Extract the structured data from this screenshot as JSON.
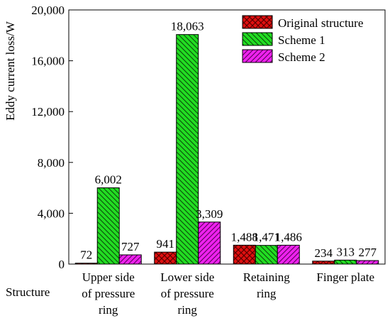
{
  "chart_data": {
    "type": "bar",
    "ylabel": "Eddy current loss/W",
    "xlabel": "Structure",
    "ylim": [
      0,
      20000
    ],
    "yticks": [
      "0",
      "4,000",
      "8,000",
      "12,000",
      "16,000",
      "20,000"
    ],
    "categories": [
      [
        "Upper side",
        "of pressure",
        "ring"
      ],
      [
        "Lower side",
        "of pressure",
        "ring"
      ],
      [
        "Retaining",
        "ring"
      ],
      [
        "Finger plate"
      ]
    ],
    "series": [
      {
        "name": "Original structure",
        "color": "#e01010",
        "pattern": "crosshatch",
        "values": [
          72,
          941,
          1488,
          234
        ],
        "labels": [
          "72",
          "941",
          "1,488",
          "234"
        ]
      },
      {
        "name": "Scheme 1",
        "color": "#22dd22",
        "pattern": "backslash",
        "values": [
          6002,
          18063,
          1471,
          313
        ],
        "labels": [
          "6,002",
          "18,063",
          "1,471",
          "313"
        ]
      },
      {
        "name": "Scheme 2",
        "color": "#ee22ee",
        "pattern": "slash",
        "values": [
          727,
          3309,
          1486,
          277
        ],
        "labels": [
          "727",
          "3,309",
          "1,486",
          "277"
        ]
      }
    ],
    "grid": false,
    "legend_position": "top-right"
  }
}
